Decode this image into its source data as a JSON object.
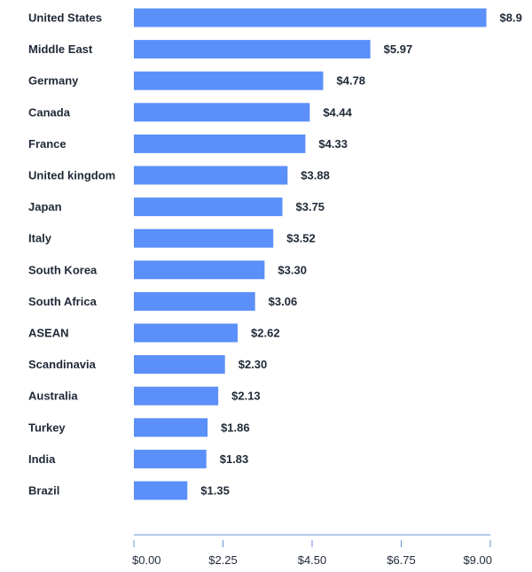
{
  "chart_data": {
    "type": "bar",
    "orientation": "horizontal",
    "categories": [
      "United States",
      "Middle East",
      "Germany",
      "Canada",
      "France",
      "United kingdom",
      "Japan",
      "Italy",
      "South Korea",
      "South Africa",
      "ASEAN",
      "Scandinavia",
      "Australia",
      "Turkey",
      "India",
      "Brazil"
    ],
    "values": [
      8.9,
      5.97,
      4.78,
      4.44,
      4.33,
      3.88,
      3.75,
      3.52,
      3.3,
      3.06,
      2.62,
      2.3,
      2.13,
      1.86,
      1.83,
      1.35
    ],
    "value_labels": [
      "$8.9",
      "$5.97",
      "$4.78",
      "$4.44",
      "$4.33",
      "$3.88",
      "$3.75",
      "$3.52",
      "$3.30",
      "$3.06",
      "$2.62",
      "$2.30",
      "$2.13",
      "$1.86",
      "$1.83",
      "$1.35"
    ],
    "xlim": [
      0,
      9
    ],
    "xticks": [
      0,
      2.25,
      4.5,
      6.75,
      9
    ],
    "xtick_labels": [
      "$0.00",
      "$2.25",
      "$4.50",
      "$6.75",
      "$9.00"
    ],
    "title": "",
    "xlabel": "",
    "ylabel": "",
    "grid": false,
    "legend": "none",
    "colors": {
      "bar": "#5b8ff9",
      "text": "#1f2937",
      "axis": "#6b8fd6"
    }
  }
}
